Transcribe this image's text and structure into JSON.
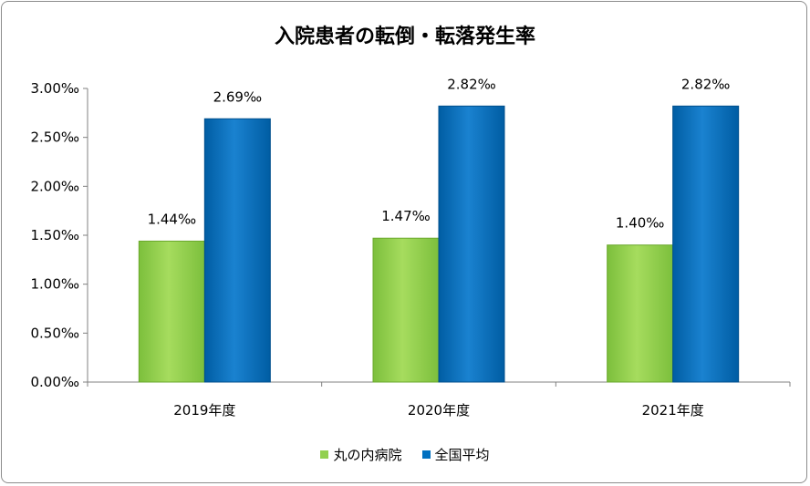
{
  "chart_data": {
    "type": "bar",
    "title": "入院患者の転倒・転落発生率",
    "categories": [
      "2019年度",
      "2020年度",
      "2021年度"
    ],
    "series": [
      {
        "name": "丸の内病院",
        "values": [
          1.44,
          1.47,
          1.4
        ],
        "labels": [
          "1.44‰",
          "1.47‰",
          "1.40‰"
        ],
        "color": "#92d050",
        "color_dark": "#6aa82c"
      },
      {
        "name": "全国平均",
        "values": [
          2.69,
          2.82,
          2.82
        ],
        "labels": [
          "2.69‰",
          "2.82‰",
          "2.82‰"
        ],
        "color": "#0070c0",
        "color_dark": "#004f8c"
      }
    ],
    "ylim": [
      0,
      3.0
    ],
    "yticks": [
      0,
      0.5,
      1.0,
      1.5,
      2.0,
      2.5,
      3.0
    ],
    "ytick_labels": [
      "0.00‰",
      "0.50‰",
      "1.00‰",
      "1.50‰",
      "2.00‰",
      "2.50‰",
      "3.00‰"
    ],
    "xlabel": "",
    "ylabel": "",
    "grid": false,
    "legend": "bottom"
  }
}
